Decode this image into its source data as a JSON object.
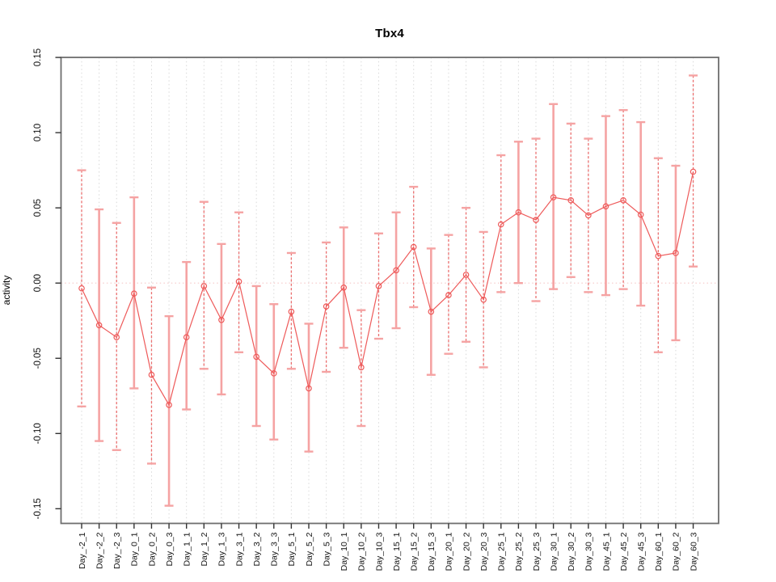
{
  "chart": {
    "title": "Tbx4",
    "ylabel": "activity"
  },
  "chart_data": {
    "type": "line",
    "title": "Tbx4",
    "xlabel": "",
    "ylabel": "activity",
    "ylim": [
      -0.15,
      0.15
    ],
    "y_ticks": [
      0.15,
      0.1,
      0.05,
      0.0,
      -0.05,
      -0.1,
      -0.15
    ],
    "y_tick_labels": [
      "0.15",
      "0.10",
      "0.05",
      "0.00",
      "-0.05",
      "-0.10",
      "-0.15"
    ],
    "grid": "vertical-dotted",
    "zero_line": true,
    "legend": "none",
    "categories": [
      "Day_-2_1",
      "Day_-2_2",
      "Day_-2_3",
      "Day_0_1",
      "Day_0_2",
      "Day_0_3",
      "Day_1_1",
      "Day_1_2",
      "Day_1_3",
      "Day_3_1",
      "Day_3_2",
      "Day_3_3",
      "Day_5_1",
      "Day_5_2",
      "Day_5_3",
      "Day_10_1",
      "Day_10_2",
      "Day_10_3",
      "Day_15_1",
      "Day_15_2",
      "Day_15_3",
      "Day_20_1",
      "Day_20_2",
      "Day_20_3",
      "Day_25_1",
      "Day_25_2",
      "Day_25_3",
      "Day_30_1",
      "Day_30_2",
      "Day_30_3",
      "Day_45_1",
      "Day_45_2",
      "Day_45_3",
      "Day_60_1",
      "Day_60_2",
      "Day_60_3"
    ],
    "series": [
      {
        "name": "activity",
        "marker": "open-circle",
        "values": [
          -0.0035,
          -0.028,
          -0.036,
          -0.007,
          -0.061,
          -0.081,
          -0.036,
          -0.002,
          -0.0245,
          0.001,
          -0.049,
          -0.06,
          -0.019,
          -0.07,
          -0.0155,
          -0.003,
          -0.056,
          -0.002,
          0.0085,
          0.024,
          -0.019,
          -0.008,
          0.0055,
          -0.011,
          0.039,
          0.047,
          0.042,
          0.057,
          0.055,
          0.045,
          0.051,
          0.055,
          0.0455,
          0.018,
          0.02,
          0.074
        ],
        "error_low": [
          -0.082,
          -0.105,
          -0.111,
          -0.07,
          -0.12,
          -0.148,
          -0.084,
          -0.057,
          -0.074,
          -0.046,
          -0.095,
          -0.104,
          -0.057,
          -0.112,
          -0.059,
          -0.043,
          -0.095,
          -0.037,
          -0.03,
          -0.016,
          -0.061,
          -0.047,
          -0.039,
          -0.056,
          -0.006,
          0.0,
          -0.012,
          -0.004,
          0.004,
          -0.006,
          -0.008,
          -0.004,
          -0.015,
          -0.046,
          -0.038,
          0.011
        ],
        "error_high": [
          0.075,
          0.049,
          0.04,
          0.057,
          -0.003,
          -0.022,
          0.014,
          0.054,
          0.026,
          0.047,
          -0.002,
          -0.014,
          0.02,
          -0.027,
          0.027,
          0.037,
          -0.018,
          0.033,
          0.047,
          0.064,
          0.023,
          0.032,
          0.05,
          0.034,
          0.085,
          0.094,
          0.096,
          0.119,
          0.106,
          0.096,
          0.111,
          0.115,
          0.107,
          0.083,
          0.078,
          0.138
        ],
        "error_bar_styles": [
          "dashed",
          "solid",
          "dashed",
          "solid",
          "dashed",
          "solid",
          "solid",
          "dashed",
          "solid",
          "dashed",
          "solid",
          "solid",
          "dashed",
          "solid",
          "dashed",
          "solid",
          "dashed",
          "dashed",
          "solid",
          "dashed",
          "solid",
          "dashed",
          "dashed",
          "dashed",
          "dashed",
          "solid",
          "dashed",
          "solid",
          "dashed",
          "dashed",
          "solid",
          "dashed",
          "solid",
          "dashed",
          "solid",
          "dashed"
        ]
      }
    ],
    "colors": {
      "point_line": "#ee5a5a",
      "error_solid": "#f5a3a3",
      "error_dashed": "#eb6f6f",
      "zero_line": "#f6c8c8",
      "grid": "#d9d9d9",
      "axis_box": "#6e6e6e",
      "tick": "#333333",
      "text": "#111111"
    }
  }
}
